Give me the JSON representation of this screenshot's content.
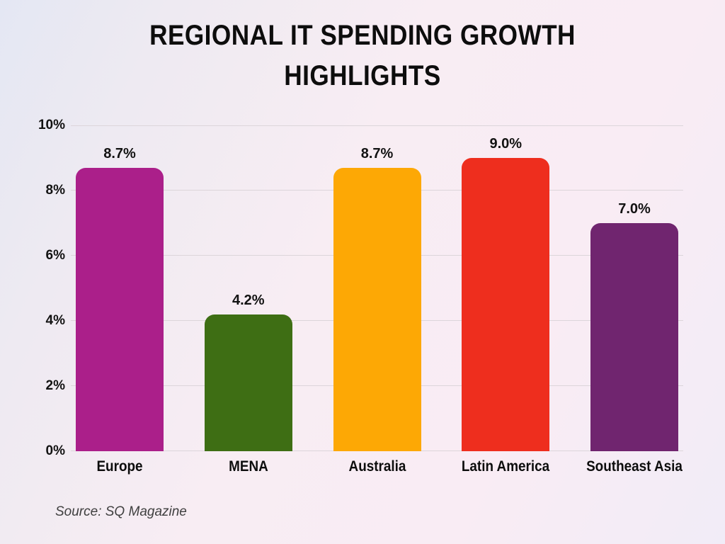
{
  "header": {
    "title": "REGIONAL IT SPENDING GROWTH HIGHLIGHTS"
  },
  "footer": {
    "source": "Source: SQ Magazine"
  },
  "colors": {
    "background_start": "#e4e7f3",
    "background_mid": "#f8edf3",
    "background_end": "#f1ecf7",
    "gridline": "#dcd5da",
    "text": "#111111",
    "source_text": "#3f3f3f"
  },
  "chart_data": {
    "type": "bar",
    "title": "REGIONAL IT SPENDING GROWTH HIGHLIGHTS",
    "categories": [
      "Europe",
      "MENA",
      "Australia",
      "Latin America",
      "Southeast Asia"
    ],
    "values": [
      8.7,
      4.2,
      8.7,
      9.0,
      7.0
    ],
    "value_labels": [
      "8.7%",
      "4.2%",
      "8.7%",
      "9.0%",
      "7.0%"
    ],
    "bar_colors": [
      "#ab1f8a",
      "#3e6e14",
      "#fda805",
      "#ee2e1e",
      "#70256f"
    ],
    "xlabel": "",
    "ylabel": "",
    "ylim": [
      0,
      10
    ],
    "ytick_values": [
      0,
      2,
      4,
      6,
      8,
      10
    ],
    "ytick_labels": [
      "0%",
      "2%",
      "4%",
      "6%",
      "8%",
      "10%"
    ],
    "grid": true,
    "legend": false,
    "source": "Source: SQ Magazine"
  }
}
